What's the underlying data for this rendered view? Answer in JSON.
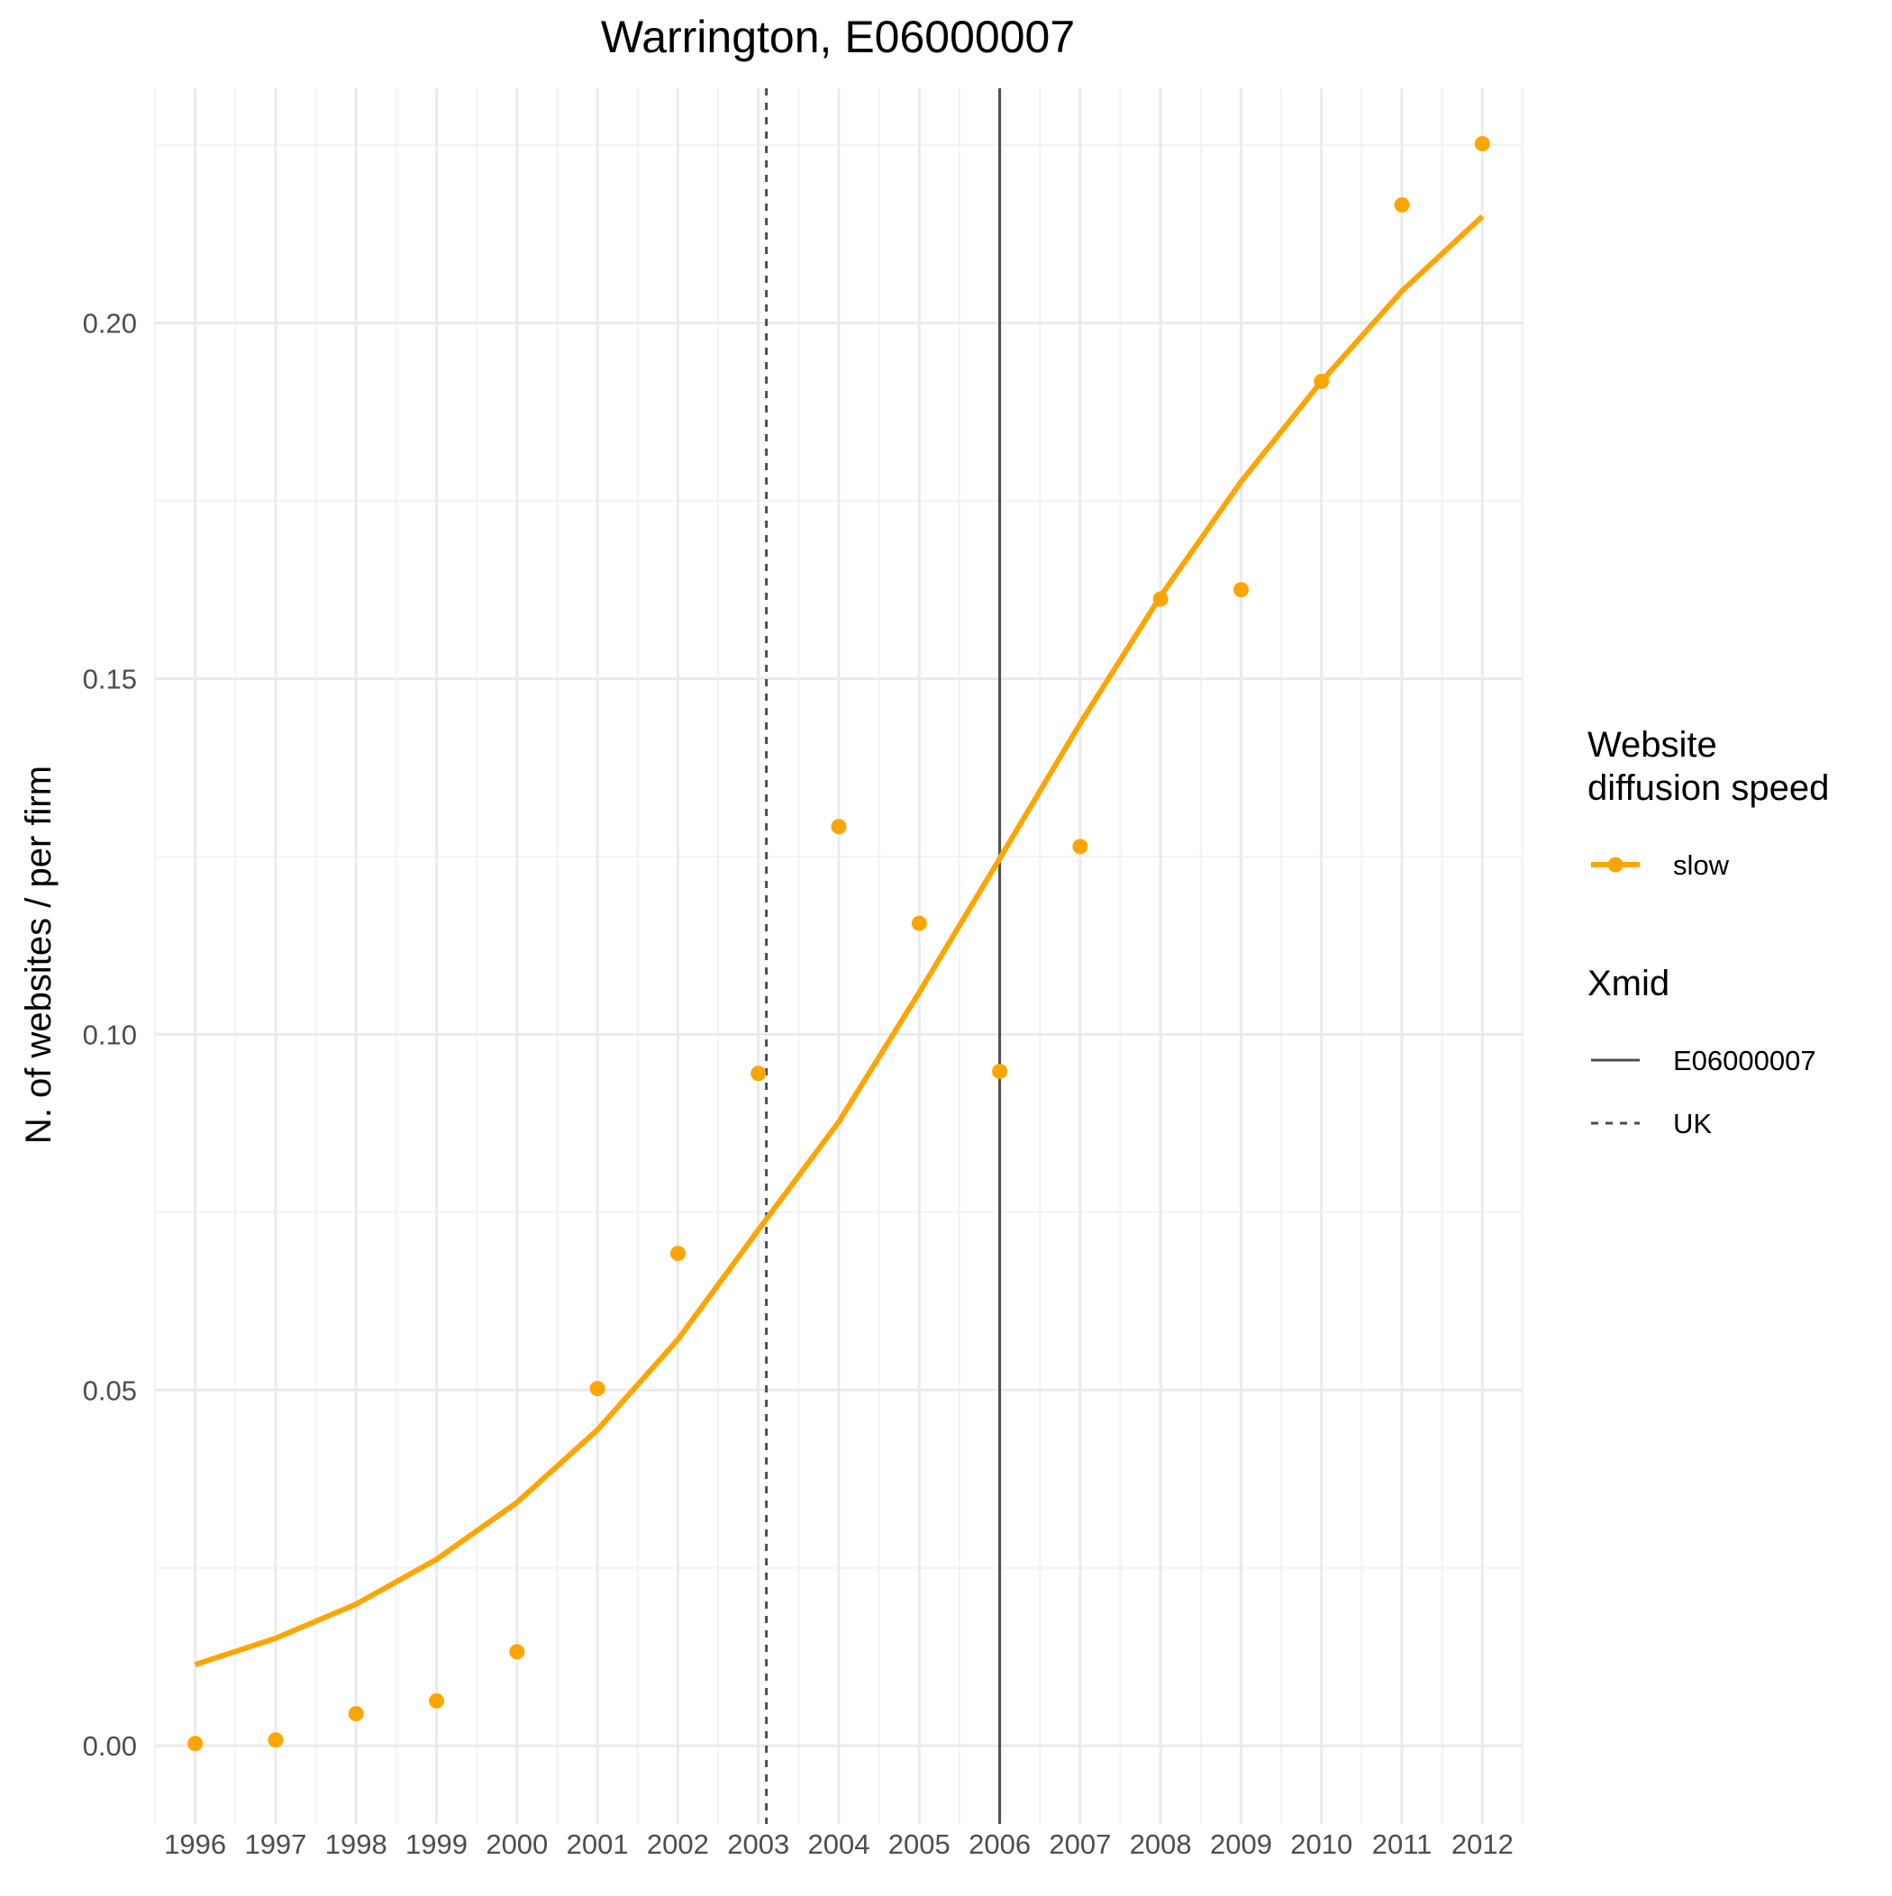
{
  "chart_data": {
    "type": "line",
    "title": "Warrington, E06000007",
    "xlabel": "",
    "ylabel": "N. of websites / per firm",
    "x": [
      1996,
      1997,
      1998,
      1999,
      2000,
      2001,
      2002,
      2003,
      2004,
      2005,
      2006,
      2007,
      2008,
      2009,
      2010,
      2011,
      2012
    ],
    "x_tick_labels": [
      "1996",
      "1997",
      "1998",
      "1999",
      "2000",
      "2001",
      "2002",
      "2003",
      "2004",
      "2005",
      "2006",
      "2007",
      "2008",
      "2009",
      "2010",
      "2011",
      "2012"
    ],
    "y_ticks": [
      0.0,
      0.05,
      0.1,
      0.15,
      0.2
    ],
    "y_tick_labels": [
      "0.00",
      "0.05",
      "0.10",
      "0.15",
      "0.20"
    ],
    "xlim": [
      1995.5,
      2012.5
    ],
    "ylim": [
      -0.011,
      0.233
    ],
    "grid": true,
    "series": [
      {
        "name": "slow",
        "color": "#FFA500",
        "points": [
          0.0003,
          0.0008,
          0.0045,
          0.0063,
          0.0132,
          0.0502,
          0.0692,
          0.0945,
          0.1292,
          0.1156,
          0.0948,
          0.1264,
          0.1612,
          0.1625,
          0.1918,
          0.2166,
          0.2252
        ],
        "fitted": [
          0.0114,
          0.0151,
          0.0199,
          0.0262,
          0.0342,
          0.0444,
          0.0571,
          0.0725,
          0.0877,
          0.1059,
          0.1247,
          0.1437,
          0.1616,
          0.1777,
          0.1918,
          0.2045,
          0.215
        ]
      }
    ],
    "vlines": [
      {
        "name": "E06000007",
        "x": 2006,
        "style": "solid",
        "color": "#4d4d4d"
      },
      {
        "name": "UK",
        "x": 2003.1,
        "style": "dashed",
        "color": "#4d4d4d"
      }
    ],
    "legends": [
      {
        "title_lines": [
          "Website",
          "diffusion speed"
        ],
        "entries": [
          {
            "label": "slow",
            "kind": "line-point",
            "color": "#FFA500"
          }
        ]
      },
      {
        "title_lines": [
          "Xmid"
        ],
        "entries": [
          {
            "label": "E06000007",
            "kind": "solid",
            "color": "#4d4d4d"
          },
          {
            "label": "UK",
            "kind": "dashed",
            "color": "#4d4d4d"
          }
        ]
      }
    ],
    "legend_position": "right"
  }
}
